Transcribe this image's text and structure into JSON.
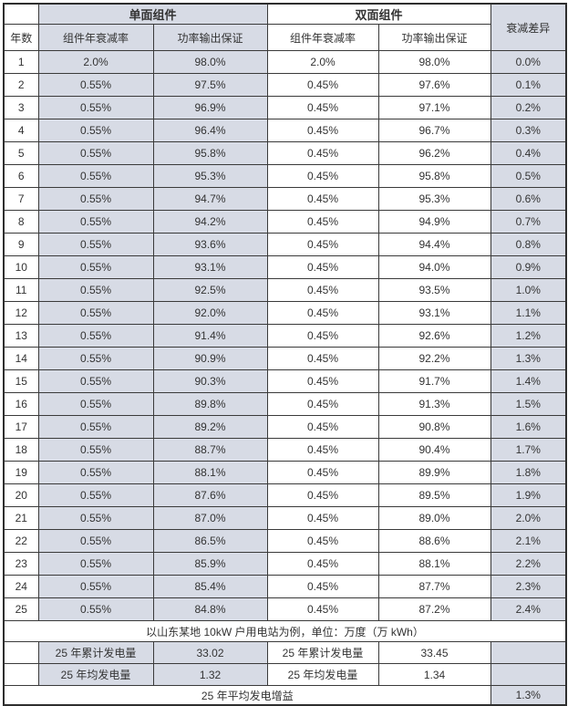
{
  "table": {
    "header": {
      "year_label": "年数",
      "mono_group_label": "单面组件",
      "bifacial_group_label": "双面组件",
      "diff_label": "衰减差异",
      "mono_degradation_label": "组件年衰减率",
      "mono_power_label": "功率输出保证",
      "bifacial_degradation_label": "组件年衰减率",
      "bifacial_power_label": "功率输出保证"
    },
    "rows": [
      {
        "year": "1",
        "mono_deg": "2.0%",
        "mono_power": "98.0%",
        "bi_deg": "2.0%",
        "bi_power": "98.0%",
        "diff": "0.0%"
      },
      {
        "year": "2",
        "mono_deg": "0.55%",
        "mono_power": "97.5%",
        "bi_deg": "0.45%",
        "bi_power": "97.6%",
        "diff": "0.1%"
      },
      {
        "year": "3",
        "mono_deg": "0.55%",
        "mono_power": "96.9%",
        "bi_deg": "0.45%",
        "bi_power": "97.1%",
        "diff": "0.2%"
      },
      {
        "year": "4",
        "mono_deg": "0.55%",
        "mono_power": "96.4%",
        "bi_deg": "0.45%",
        "bi_power": "96.7%",
        "diff": "0.3%"
      },
      {
        "year": "5",
        "mono_deg": "0.55%",
        "mono_power": "95.8%",
        "bi_deg": "0.45%",
        "bi_power": "96.2%",
        "diff": "0.4%"
      },
      {
        "year": "6",
        "mono_deg": "0.55%",
        "mono_power": "95.3%",
        "bi_deg": "0.45%",
        "bi_power": "95.8%",
        "diff": "0.5%"
      },
      {
        "year": "7",
        "mono_deg": "0.55%",
        "mono_power": "94.7%",
        "bi_deg": "0.45%",
        "bi_power": "95.3%",
        "diff": "0.6%"
      },
      {
        "year": "8",
        "mono_deg": "0.55%",
        "mono_power": "94.2%",
        "bi_deg": "0.45%",
        "bi_power": "94.9%",
        "diff": "0.7%"
      },
      {
        "year": "9",
        "mono_deg": "0.55%",
        "mono_power": "93.6%",
        "bi_deg": "0.45%",
        "bi_power": "94.4%",
        "diff": "0.8%"
      },
      {
        "year": "10",
        "mono_deg": "0.55%",
        "mono_power": "93.1%",
        "bi_deg": "0.45%",
        "bi_power": "94.0%",
        "diff": "0.9%"
      },
      {
        "year": "11",
        "mono_deg": "0.55%",
        "mono_power": "92.5%",
        "bi_deg": "0.45%",
        "bi_power": "93.5%",
        "diff": "1.0%"
      },
      {
        "year": "12",
        "mono_deg": "0.55%",
        "mono_power": "92.0%",
        "bi_deg": "0.45%",
        "bi_power": "93.1%",
        "diff": "1.1%"
      },
      {
        "year": "13",
        "mono_deg": "0.55%",
        "mono_power": "91.4%",
        "bi_deg": "0.45%",
        "bi_power": "92.6%",
        "diff": "1.2%"
      },
      {
        "year": "14",
        "mono_deg": "0.55%",
        "mono_power": "90.9%",
        "bi_deg": "0.45%",
        "bi_power": "92.2%",
        "diff": "1.3%"
      },
      {
        "year": "15",
        "mono_deg": "0.55%",
        "mono_power": "90.3%",
        "bi_deg": "0.45%",
        "bi_power": "91.7%",
        "diff": "1.4%"
      },
      {
        "year": "16",
        "mono_deg": "0.55%",
        "mono_power": "89.8%",
        "bi_deg": "0.45%",
        "bi_power": "91.3%",
        "diff": "1.5%"
      },
      {
        "year": "17",
        "mono_deg": "0.55%",
        "mono_power": "89.2%",
        "bi_deg": "0.45%",
        "bi_power": "90.8%",
        "diff": "1.6%"
      },
      {
        "year": "18",
        "mono_deg": "0.55%",
        "mono_power": "88.7%",
        "bi_deg": "0.45%",
        "bi_power": "90.4%",
        "diff": "1.7%"
      },
      {
        "year": "19",
        "mono_deg": "0.55%",
        "mono_power": "88.1%",
        "bi_deg": "0.45%",
        "bi_power": "89.9%",
        "diff": "1.8%"
      },
      {
        "year": "20",
        "mono_deg": "0.55%",
        "mono_power": "87.6%",
        "bi_deg": "0.45%",
        "bi_power": "89.5%",
        "diff": "1.9%"
      },
      {
        "year": "21",
        "mono_deg": "0.55%",
        "mono_power": "87.0%",
        "bi_deg": "0.45%",
        "bi_power": "89.0%",
        "diff": "2.0%"
      },
      {
        "year": "22",
        "mono_deg": "0.55%",
        "mono_power": "86.5%",
        "bi_deg": "0.45%",
        "bi_power": "88.6%",
        "diff": "2.1%"
      },
      {
        "year": "23",
        "mono_deg": "0.55%",
        "mono_power": "85.9%",
        "bi_deg": "0.45%",
        "bi_power": "88.1%",
        "diff": "2.2%"
      },
      {
        "year": "24",
        "mono_deg": "0.55%",
        "mono_power": "85.4%",
        "bi_deg": "0.45%",
        "bi_power": "87.7%",
        "diff": "2.3%"
      },
      {
        "year": "25",
        "mono_deg": "0.55%",
        "mono_power": "84.8%",
        "bi_deg": "0.45%",
        "bi_power": "87.2%",
        "diff": "2.4%"
      }
    ],
    "note": "以山东某地 10kW 户用电站为例，单位：万度（万 kWh）",
    "summary": {
      "mono_cumulative_label": "25 年累计发电量",
      "mono_cumulative_value": "33.02",
      "bifacial_cumulative_label": "25 年累计发电量",
      "bifacial_cumulative_value": "33.45",
      "mono_average_label": "25 年均发电量",
      "mono_average_value": "1.32",
      "bifacial_average_label": "25 年均发电量",
      "bifacial_average_value": "1.34",
      "gain_label": "25 年平均发电增益",
      "gain_value": "1.3%"
    },
    "colors": {
      "shaded_fill": "#d7dbe5",
      "border": "#3a3a3a",
      "text": "#333333"
    }
  }
}
